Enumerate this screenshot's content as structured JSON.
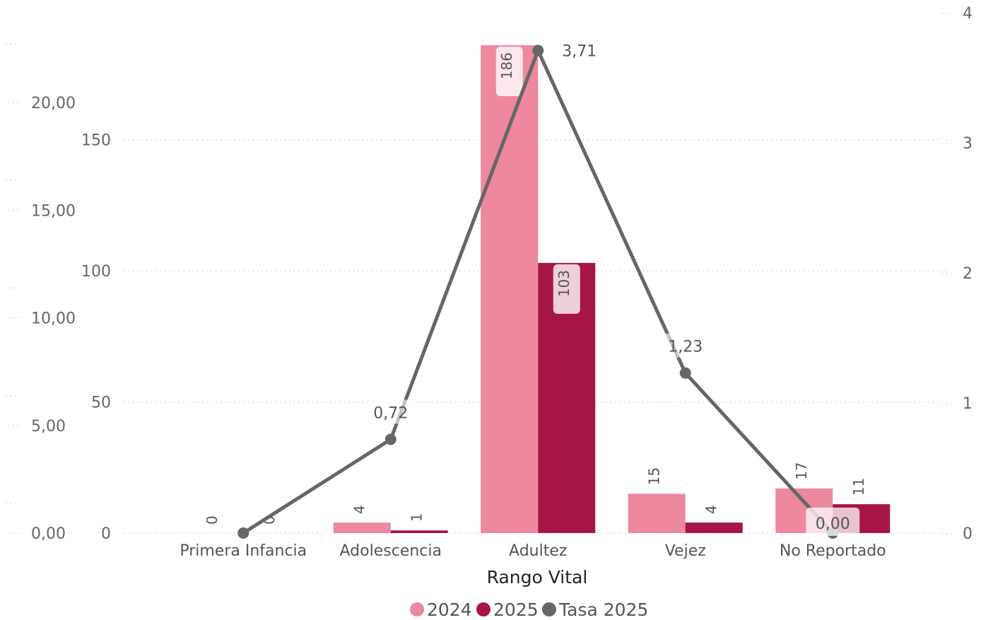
{
  "chart_data": {
    "type": "bar",
    "combo": "clustered-column-and-line",
    "xlabel": "Rango Vital",
    "categories": [
      "Primera Infancia",
      "Adolescencia",
      "Adultez",
      "Vejez",
      "No Reportado"
    ],
    "series": [
      {
        "name": "2024",
        "kind": "bar",
        "axis": "primary",
        "color": "#ED889E",
        "values": [
          0,
          4,
          186,
          15,
          17
        ],
        "labels": [
          "0",
          "4",
          "186",
          "15",
          "17"
        ]
      },
      {
        "name": "2025",
        "kind": "bar",
        "axis": "primary",
        "color": "#A51547",
        "values": [
          0,
          1,
          103,
          4,
          11
        ],
        "labels": [
          "0",
          "1",
          "103",
          "4",
          "11"
        ]
      },
      {
        "name": "Tasa 2025",
        "kind": "line",
        "axis": "secondary",
        "color": "#666666",
        "values": [
          0,
          0.72,
          3.71,
          1.23,
          0
        ],
        "labels": [
          "",
          "0,72",
          "3,71",
          "1,23",
          "0,00"
        ]
      }
    ],
    "axes": {
      "primary": {
        "ylim": [
          0,
          186
        ],
        "ticks": [
          0,
          50,
          100,
          150
        ],
        "tick_labels": [
          "0",
          "50",
          "100",
          "150"
        ]
      },
      "secondary": {
        "ylim": [
          0,
          4
        ],
        "ticks": [
          0,
          1,
          2,
          3,
          4
        ],
        "tick_labels": [
          "0",
          "1",
          "2",
          "3",
          "4"
        ]
      },
      "outer_left": {
        "ylim": [
          0,
          20
        ],
        "ticks": [
          0,
          5,
          10,
          15,
          20
        ],
        "tick_labels": [
          "0,00",
          "5,00",
          "10,00",
          "15,00",
          "20,00"
        ]
      }
    },
    "grid": true,
    "legend": {
      "placement": "bottom-center",
      "items": [
        {
          "label": "2024",
          "color": "#ED889E"
        },
        {
          "label": "2025",
          "color": "#A51547"
        },
        {
          "label": "Tasa 2025",
          "color": "#666666"
        }
      ]
    }
  }
}
